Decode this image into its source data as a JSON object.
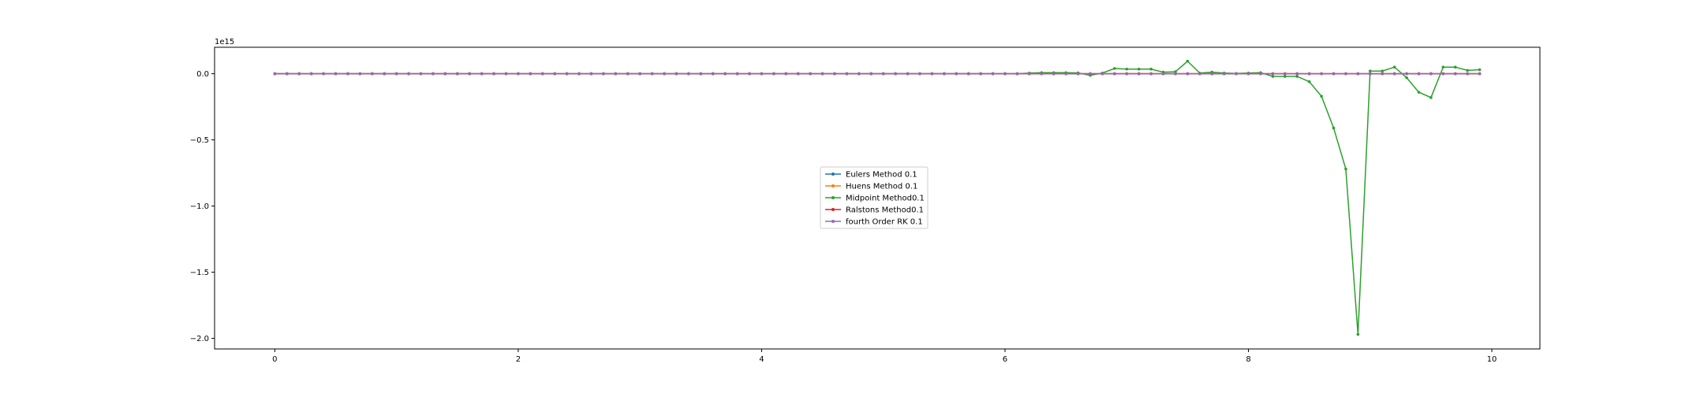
{
  "chart_data": {
    "type": "line",
    "title": "",
    "xlabel": "",
    "ylabel": "",
    "offset_text": "1e15",
    "xlim": [
      -0.495,
      10.395
    ],
    "ylim": [
      -2.08,
      0.2
    ],
    "y_scale_exponent": 15,
    "xticks": [
      0,
      2,
      4,
      6,
      8,
      10
    ],
    "xtick_labels": [
      "0",
      "2",
      "4",
      "6",
      "8",
      "10"
    ],
    "yticks": [
      0.0,
      -0.5,
      -1.0,
      -1.5,
      -2.0
    ],
    "ytick_labels": [
      "0.0",
      "−0.5",
      "−1.0",
      "−1.5",
      "−2.0"
    ],
    "legend_position": "center",
    "colors": {
      "eulers": "#1f77b4",
      "huens": "#ff7f0e",
      "midpoint": "#2ca02c",
      "ralstons": "#d62728",
      "rk4": "#9467bd",
      "axes": "#000000"
    },
    "x": [
      0.0,
      0.1,
      0.2,
      0.3,
      0.4,
      0.5,
      0.6,
      0.7,
      0.8,
      0.9,
      1.0,
      1.1,
      1.2,
      1.3,
      1.4,
      1.5,
      1.6,
      1.7,
      1.8,
      1.9,
      2.0,
      2.1,
      2.2,
      2.3,
      2.4,
      2.5,
      2.6,
      2.7,
      2.8,
      2.9,
      3.0,
      3.1,
      3.2,
      3.3,
      3.4,
      3.5,
      3.6,
      3.7,
      3.8,
      3.9,
      4.0,
      4.1,
      4.2,
      4.3,
      4.4,
      4.5,
      4.6,
      4.7,
      4.8,
      4.9,
      5.0,
      5.1,
      5.2,
      5.3,
      5.4,
      5.5,
      5.6,
      5.7,
      5.8,
      5.9,
      6.0,
      6.1,
      6.2,
      6.3,
      6.4,
      6.5,
      6.6,
      6.7,
      6.8,
      6.9,
      7.0,
      7.1,
      7.2,
      7.3,
      7.4,
      7.5,
      7.6,
      7.7,
      7.8,
      7.9,
      8.0,
      8.1,
      8.2,
      8.3,
      8.4,
      8.5,
      8.6,
      8.7,
      8.8,
      8.9,
      9.0,
      9.1,
      9.2,
      9.3,
      9.4,
      9.5,
      9.6,
      9.7,
      9.8,
      9.9
    ],
    "series": [
      {
        "name": "Eulers Method 0.1",
        "color_key": "eulers",
        "marker": "circle",
        "values": [
          0,
          0,
          0,
          0,
          0,
          0,
          0,
          0,
          0,
          0,
          0,
          0,
          0,
          0,
          0,
          0,
          0,
          0,
          0,
          0,
          0,
          0,
          0,
          0,
          0,
          0,
          0,
          0,
          0,
          0,
          0,
          0,
          0,
          0,
          0,
          0,
          0,
          0,
          0,
          0,
          0,
          0,
          0,
          0,
          0,
          0,
          0,
          0,
          0,
          0,
          0,
          0,
          0,
          0,
          0,
          0,
          0,
          0,
          0,
          0,
          0,
          0,
          0,
          0,
          0,
          0,
          0,
          0,
          0,
          0,
          0,
          0,
          0,
          0,
          0,
          0,
          0,
          0,
          0,
          0,
          0,
          0,
          0,
          0,
          0,
          0,
          0,
          0,
          0,
          0,
          0,
          0,
          0,
          0,
          0,
          0,
          0,
          0,
          0,
          0
        ]
      },
      {
        "name": "Huens Method 0.1",
        "color_key": "huens",
        "marker": "circle",
        "values": [
          0,
          0,
          0,
          0,
          0,
          0,
          0,
          0,
          0,
          0,
          0,
          0,
          0,
          0,
          0,
          0,
          0,
          0,
          0,
          0,
          0,
          0,
          0,
          0,
          0,
          0,
          0,
          0,
          0,
          0,
          0,
          0,
          0,
          0,
          0,
          0,
          0,
          0,
          0,
          0,
          0,
          0,
          0,
          0,
          0,
          0,
          0,
          0,
          0,
          0,
          0,
          0,
          0,
          0,
          0,
          0,
          0,
          0,
          0,
          0,
          0,
          0,
          0,
          0,
          0,
          0,
          0,
          0,
          0,
          0,
          0,
          0,
          0,
          0,
          0,
          0,
          0,
          0,
          0,
          0,
          0,
          0,
          0,
          0,
          0,
          0,
          0,
          0,
          0,
          0,
          0,
          0,
          0,
          0,
          0,
          0,
          0,
          0,
          0,
          0
        ]
      },
      {
        "name": "Midpoint Method0.1",
        "color_key": "midpoint",
        "marker": "circle",
        "values": [
          0,
          0,
          0,
          0,
          0,
          0,
          0,
          0,
          0,
          0,
          0,
          0,
          0,
          0,
          0,
          0,
          0,
          0,
          0,
          0,
          0,
          0,
          0,
          0,
          0,
          0,
          0,
          0,
          0,
          0,
          0,
          0,
          0,
          0,
          0,
          0,
          0,
          0,
          0,
          0,
          0,
          0,
          0,
          0,
          0,
          0,
          0,
          0,
          0,
          0,
          0,
          0,
          0,
          0,
          0,
          0,
          0,
          0,
          0,
          0,
          0,
          0,
          0.005,
          0.008,
          0.008,
          0.008,
          0.006,
          -0.012,
          0.005,
          0.04,
          0.035,
          0.035,
          0.035,
          0.012,
          0.015,
          0.095,
          0.005,
          0.012,
          0.005,
          0.002,
          0.005,
          0.008,
          -0.02,
          -0.02,
          -0.02,
          -0.06,
          -0.17,
          -0.41,
          -0.72,
          -1.97,
          0.02,
          0.02,
          0.05,
          -0.03,
          -0.14,
          -0.18,
          0.05,
          0.05,
          0.025,
          0.03
        ]
      },
      {
        "name": "Ralstons Method0.1",
        "color_key": "ralstons",
        "marker": "circle",
        "values": [
          0,
          0,
          0,
          0,
          0,
          0,
          0,
          0,
          0,
          0,
          0,
          0,
          0,
          0,
          0,
          0,
          0,
          0,
          0,
          0,
          0,
          0,
          0,
          0,
          0,
          0,
          0,
          0,
          0,
          0,
          0,
          0,
          0,
          0,
          0,
          0,
          0,
          0,
          0,
          0,
          0,
          0,
          0,
          0,
          0,
          0,
          0,
          0,
          0,
          0,
          0,
          0,
          0,
          0,
          0,
          0,
          0,
          0,
          0,
          0,
          0,
          0,
          0,
          0,
          0,
          0,
          0,
          0,
          0,
          0,
          0,
          0,
          0,
          0,
          0,
          0,
          0,
          0,
          0,
          0,
          0,
          0,
          0,
          0,
          0,
          0,
          0,
          0,
          0,
          0,
          0,
          0,
          0,
          0,
          0,
          0,
          0,
          0,
          0,
          0
        ]
      },
      {
        "name": "fourth Order RK 0.1",
        "color_key": "rk4",
        "marker": "circle",
        "values": [
          0,
          0,
          0,
          0,
          0,
          0,
          0,
          0,
          0,
          0,
          0,
          0,
          0,
          0,
          0,
          0,
          0,
          0,
          0,
          0,
          0,
          0,
          0,
          0,
          0,
          0,
          0,
          0,
          0,
          0,
          0,
          0,
          0,
          0,
          0,
          0,
          0,
          0,
          0,
          0,
          0,
          0,
          0,
          0,
          0,
          0,
          0,
          0,
          0,
          0,
          0,
          0,
          0,
          0,
          0,
          0,
          0,
          0,
          0,
          0,
          0,
          0,
          0,
          0,
          0,
          0,
          0,
          0,
          0,
          0,
          0,
          0,
          0,
          0,
          0,
          0,
          0,
          0,
          0,
          0,
          0,
          0,
          0,
          0,
          0,
          0,
          0,
          0,
          0,
          0,
          0,
          0,
          0,
          0,
          0,
          0,
          0,
          0,
          0,
          0
        ]
      }
    ]
  }
}
